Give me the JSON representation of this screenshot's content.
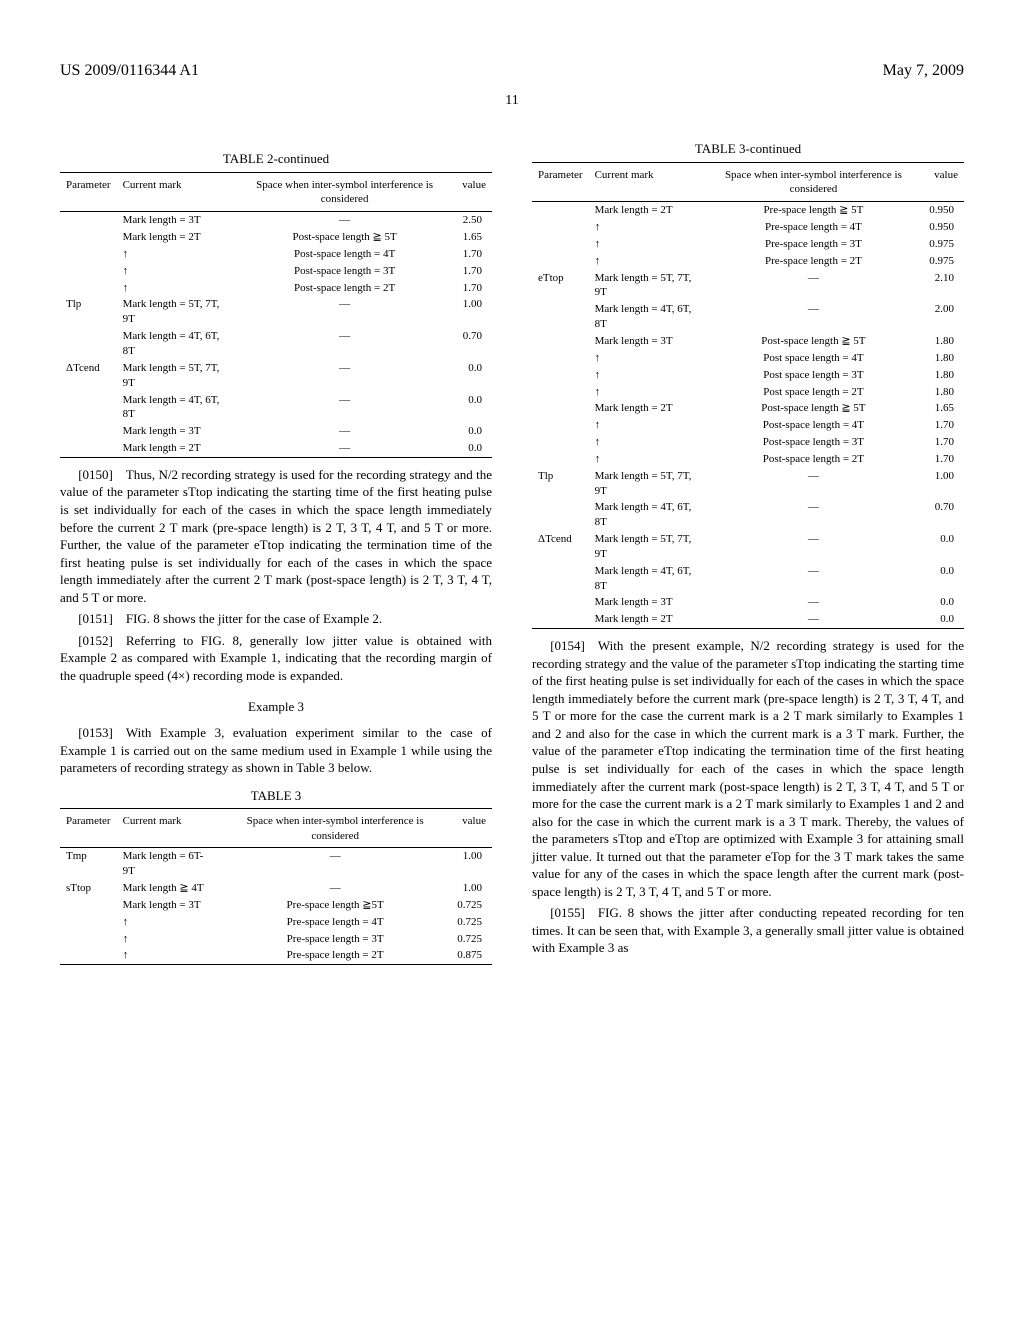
{
  "header": {
    "pub_number": "US 2009/0116344 A1",
    "date": "May 7, 2009",
    "page": "11"
  },
  "table2": {
    "title": "TABLE 2-continued",
    "head": {
      "c1": "Parameter",
      "c2": "Current mark",
      "c3": "Space when inter-symbol interference is considered",
      "c4": "value"
    },
    "rows": [
      {
        "p": "",
        "m": "Mark length = 3T",
        "s": "—",
        "v": "2.50"
      },
      {
        "p": "",
        "m": "Mark length = 2T",
        "s": "Post-space length ≧ 5T",
        "v": "1.65"
      },
      {
        "p": "",
        "m": "↑",
        "s": "Post-space length = 4T",
        "v": "1.70"
      },
      {
        "p": "",
        "m": "↑",
        "s": "Post-space length = 3T",
        "v": "1.70"
      },
      {
        "p": "",
        "m": "↑",
        "s": "Post-space length = 2T",
        "v": "1.70"
      },
      {
        "p": "Tlp",
        "m": "Mark length = 5T, 7T, 9T",
        "s": "—",
        "v": "1.00"
      },
      {
        "p": "",
        "m": "Mark length = 4T, 6T, 8T",
        "s": "—",
        "v": "0.70"
      },
      {
        "p": "ΔTcend",
        "m": "Mark length = 5T, 7T, 9T",
        "s": "—",
        "v": "0.0"
      },
      {
        "p": "",
        "m": "Mark length = 4T, 6T, 8T",
        "s": "—",
        "v": "0.0"
      },
      {
        "p": "",
        "m": "Mark length = 3T",
        "s": "—",
        "v": "0.0"
      },
      {
        "p": "",
        "m": "Mark length = 2T",
        "s": "—",
        "v": "0.0"
      }
    ]
  },
  "para0150": "[0150] Thus, N/2 recording strategy is used for the recording strategy and the value of the parameter sTtop indicating the starting time of the first heating pulse is set individually for each of the cases in which the space length immediately before the current 2 T mark (pre-space length) is 2 T, 3 T, 4 T, and 5 T or more. Further, the value of the parameter eTtop indicating the termination time of the first heating pulse is set individually for each of the cases in which the space length immediately after the current 2 T mark (post-space length) is 2 T, 3 T, 4 T, and 5 T or more.",
  "para0151": "[0151] FIG. 8 shows the jitter for the case of Example 2.",
  "para0152": "[0152] Referring to FIG. 8, generally low jitter value is obtained with Example 2 as compared with Example 1, indicating that the recording margin of the quadruple speed (4×) recording mode is expanded.",
  "example3_hdr": "Example 3",
  "para0153": "[0153] With Example 3, evaluation experiment similar to the case of Example 1 is carried out on the same medium used in Example 1 while using the parameters of recording strategy as shown in Table 3 below.",
  "table3_title": "TABLE 3",
  "table3_head": {
    "c1": "Parameter",
    "c2": "Current mark",
    "c3": "Space when inter-symbol interference is considered",
    "c4": "value"
  },
  "table3a_rows": [
    {
      "p": "Tmp",
      "m": "Mark length = 6T-9T",
      "s": "—",
      "v": "1.00"
    },
    {
      "p": "sTtop",
      "m": "Mark length ≧ 4T",
      "s": "—",
      "v": "1.00"
    },
    {
      "p": "",
      "m": "Mark length = 3T",
      "s": "Pre-space length ≧5T",
      "v": "0.725"
    },
    {
      "p": "",
      "m": "↑",
      "s": "Pre-space length = 4T",
      "v": "0.725"
    },
    {
      "p": "",
      "m": "↑",
      "s": "Pre-space length = 3T",
      "v": "0.725"
    },
    {
      "p": "",
      "m": "↑",
      "s": "Pre-space length = 2T",
      "v": "0.875"
    }
  ],
  "table3_cont_title": "TABLE 3-continued",
  "table3b_rows": [
    {
      "p": "",
      "m": "Mark length = 2T",
      "s": "Pre-space length ≧ 5T",
      "v": "0.950"
    },
    {
      "p": "",
      "m": "↑",
      "s": "Pre-space length = 4T",
      "v": "0.950"
    },
    {
      "p": "",
      "m": "↑",
      "s": "Pre-space length = 3T",
      "v": "0.975"
    },
    {
      "p": "",
      "m": "↑",
      "s": "Pre-space length = 2T",
      "v": "0.975"
    },
    {
      "p": "eTtop",
      "m": "Mark length = 5T, 7T, 9T",
      "s": "—",
      "v": "2.10"
    },
    {
      "p": "",
      "m": "Mark length = 4T, 6T, 8T",
      "s": "—",
      "v": "2.00"
    },
    {
      "p": "",
      "m": "Mark length = 3T",
      "s": "Post-space length ≧ 5T",
      "v": "1.80"
    },
    {
      "p": "",
      "m": "↑",
      "s": "Post space length = 4T",
      "v": "1.80"
    },
    {
      "p": "",
      "m": "↑",
      "s": "Post space length = 3T",
      "v": "1.80"
    },
    {
      "p": "",
      "m": "↑",
      "s": "Post space length = 2T",
      "v": "1.80"
    },
    {
      "p": "",
      "m": "Mark length = 2T",
      "s": "Post-space length ≧ 5T",
      "v": "1.65"
    },
    {
      "p": "",
      "m": "↑",
      "s": "Post-space length = 4T",
      "v": "1.70"
    },
    {
      "p": "",
      "m": "↑",
      "s": "Post-space length = 3T",
      "v": "1.70"
    },
    {
      "p": "",
      "m": "↑",
      "s": "Post-space length = 2T",
      "v": "1.70"
    },
    {
      "p": "Tlp",
      "m": "Mark length = 5T, 7T, 9T",
      "s": "—",
      "v": "1.00"
    },
    {
      "p": "",
      "m": "Mark length = 4T, 6T, 8T",
      "s": "—",
      "v": "0.70"
    },
    {
      "p": "ΔTcend",
      "m": "Mark length = 5T, 7T, 9T",
      "s": "—",
      "v": "0.0"
    },
    {
      "p": "",
      "m": "Mark length = 4T, 6T, 8T",
      "s": "—",
      "v": "0.0"
    },
    {
      "p": "",
      "m": "Mark length = 3T",
      "s": "—",
      "v": "0.0"
    },
    {
      "p": "",
      "m": "Mark length = 2T",
      "s": "—",
      "v": "0.0"
    }
  ],
  "para0154": "[0154] With the present example, N/2 recording strategy is used for the recording strategy and the value of the parameter sTtop indicating the starting time of the first heating pulse is set individually for each of the cases in which the space length immediately before the current mark (pre-space length) is 2 T, 3 T, 4 T, and 5 T or more for the case the current mark is a 2 T mark similarly to Examples 1 and 2 and also for the case in which the current mark is a 3 T mark. Further, the value of the parameter eTtop indicating the termination time of the first heating pulse is set individually for each of the cases in which the space length immediately after the current mark (post-space length) is 2 T, 3 T, 4 T, and 5 T or more for the case the current mark is a 2 T mark similarly to Examples 1 and 2 and also for the case in which the current mark is a 3 T mark. Thereby, the values of the parameters sTtop and eTtop are optimized with Example 3 for attaining small jitter value. It turned out that the parameter eTop for the 3 T mark takes the same value for any of the cases in which the space length after the current mark (post-space length) is 2 T, 3 T, 4 T, and 5 T or more.",
  "para0155": "[0155] FIG. 8 shows the jitter after conducting repeated recording for ten times. It can be seen that, with Example 3, a generally small jitter value is obtained with Example 3 as"
}
